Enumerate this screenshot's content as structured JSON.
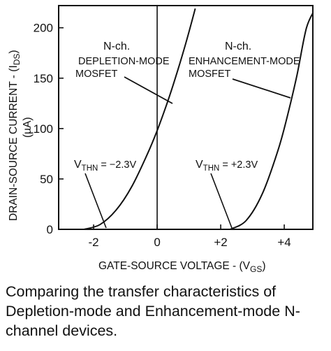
{
  "chart_data": {
    "type": "line",
    "title": "",
    "xlabel": {
      "text": "GATE-SOURCE VOLTAGE - (V",
      "sub": "GS",
      "tail": ")"
    },
    "ylabel": {
      "text": "DRAIN-SOURCE CURRENT - (I",
      "sub": "DS",
      "tail": ")"
    },
    "ylabel_unit": "(µA)",
    "xlim": [
      -3.1,
      4.9
    ],
    "ylim": [
      0,
      222
    ],
    "x_ticks": [
      {
        "value": -2,
        "label": "-2"
      },
      {
        "value": 0,
        "label": "0"
      },
      {
        "value": 2,
        "label": "+2"
      },
      {
        "value": 4,
        "label": "+4"
      }
    ],
    "y_ticks": [
      {
        "value": 0,
        "label": "0"
      },
      {
        "value": 50,
        "label": "50"
      },
      {
        "value": 100,
        "label": "100"
      },
      {
        "value": 150,
        "label": "150"
      },
      {
        "value": 200,
        "label": "200"
      }
    ],
    "grid": false,
    "series": [
      {
        "name": "N-ch. DEPLETION-MODE MOSFET",
        "threshold": -2.3,
        "x": [
          -2.3,
          -1.8,
          -1.3,
          -0.8,
          -0.3,
          0.0,
          0.3,
          0.6,
          0.9,
          1.2
        ],
        "y": [
          0,
          4.7,
          18.8,
          42.3,
          75.2,
          98.0,
          124.0,
          152.8,
          184.5,
          219.0
        ]
      },
      {
        "name": "N-ch. ENHANCEMENT-MODE MOSFET",
        "threshold": 2.3,
        "x": [
          2.3,
          2.8,
          3.3,
          3.8,
          4.1,
          4.4,
          4.7,
          5.0
        ],
        "y": [
          0,
          8.7,
          34.6,
          78.0,
          112.5,
          153.0,
          200.0,
          220.0
        ]
      }
    ],
    "annotations": [
      {
        "id": "dep-label",
        "lines": [
          "N-ch.",
          "DEPLETION-MODE",
          "MOSFET"
        ]
      },
      {
        "id": "enh-label",
        "lines": [
          "N-ch.",
          "ENHANCEMENT-MODE",
          "MOSFET"
        ]
      },
      {
        "id": "dep-vth",
        "prefix": "V",
        "sub": "THN",
        "text": " = −2.3V"
      },
      {
        "id": "enh-vth",
        "prefix": "V",
        "sub": "THN",
        "text": " = +2.3V"
      }
    ]
  },
  "caption": "Comparing the transfer characteristics of Depletion-mode and Enhancement-mode N-channel devices."
}
